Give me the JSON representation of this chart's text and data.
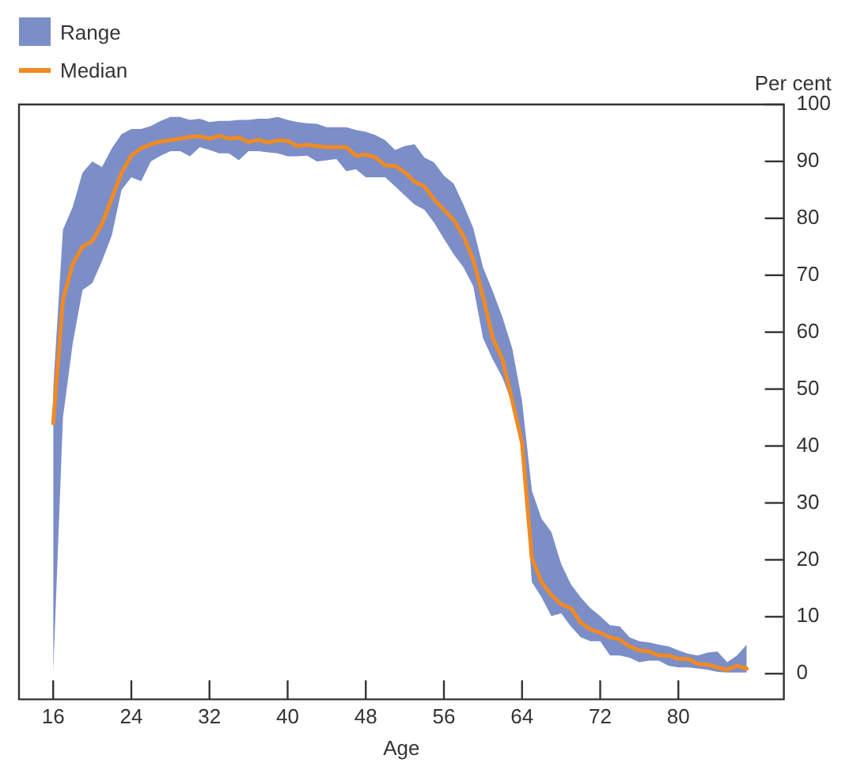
{
  "chart_data": {
    "type": "line",
    "xlabel": "Age",
    "ylabel": "Per cent",
    "legend": "top left",
    "grid": false,
    "marker": "none",
    "line_style": "solid",
    "annotations": [
      "Range"
    ],
    "x": [
      16,
      17,
      18,
      19,
      20,
      21,
      22,
      23,
      24,
      25,
      26,
      27,
      28,
      29,
      30,
      31,
      32,
      33,
      34,
      35,
      36,
      37,
      38,
      39,
      40,
      41,
      42,
      43,
      44,
      45,
      46,
      47,
      48,
      49,
      50,
      51,
      52,
      53,
      54,
      55,
      56,
      57,
      58,
      59,
      60,
      61,
      62,
      63,
      64,
      65,
      66,
      67,
      68,
      69,
      70,
      71,
      72,
      73,
      74,
      75,
      76,
      77,
      78,
      79,
      80,
      81,
      82,
      83,
      84,
      85,
      86,
      87
    ],
    "xlim": [
      12.5,
      90.8
    ],
    "xticks": [
      16,
      24,
      32,
      40,
      48,
      56,
      64,
      72,
      80
    ],
    "ylim": [
      -4.5,
      100
    ],
    "yticks": [
      0,
      10,
      20,
      30,
      40,
      50,
      60,
      70,
      80,
      90,
      100
    ],
    "series": [
      {
        "name": "Median",
        "type": "line",
        "color": "#f08a24",
        "values": [
          44,
          65.6,
          72,
          75,
          76,
          79,
          83.5,
          88,
          91,
          92.3,
          93,
          93.5,
          93.7,
          94,
          94.3,
          94.4,
          94,
          94.5,
          94,
          94.2,
          93.4,
          93.8,
          93.3,
          93.7,
          93.6,
          92.7,
          92.9,
          92.7,
          92.5,
          92.5,
          92.5,
          91,
          91.2,
          90.7,
          89.3,
          89.2,
          88.1,
          86.4,
          85.6,
          83.3,
          81.5,
          79.7,
          76.9,
          72.7,
          66.3,
          59,
          55.2,
          47.9,
          40.5,
          20.3,
          16.1,
          13.8,
          12.2,
          11.5,
          9,
          7.8,
          7.2,
          6.4,
          6,
          4.8,
          4.1,
          3.9,
          3.2,
          3.2,
          2.6,
          2.6,
          1.7,
          1.6,
          1.1,
          0.7,
          1.4,
          0.9
        ],
        "lower": [
          0,
          45,
          58,
          67.4,
          68.6,
          72.5,
          77,
          85,
          87.2,
          86.5,
          90,
          91,
          91.8,
          91.8,
          90.9,
          92.5,
          92,
          91.4,
          91.4,
          90.2,
          91.8,
          91.8,
          91.6,
          91.4,
          90.9,
          90.9,
          91,
          90,
          90.2,
          90.4,
          88.3,
          88.6,
          87.2,
          87.2,
          87.2,
          85.6,
          84,
          82.4,
          81.5,
          79.2,
          76.4,
          73.7,
          71.4,
          68.1,
          59,
          55.2,
          52,
          47.4,
          40,
          16.1,
          13.4,
          10.1,
          10.6,
          8.3,
          6.4,
          5.7,
          5.7,
          3.2,
          3.2,
          2.8,
          2,
          2.3,
          2.3,
          1.4,
          1.1,
          1.1,
          0.9,
          0.7,
          0.3,
          0.2,
          0.2,
          0.2
        ],
        "upper": [
          50,
          78,
          82,
          88,
          90,
          89,
          92.3,
          94.8,
          95.7,
          95.7,
          96.2,
          97.1,
          97.8,
          97.8,
          97.3,
          97.5,
          96.9,
          97.1,
          97.1,
          97.3,
          97.3,
          97.5,
          97.5,
          97.8,
          97.3,
          96.9,
          96.7,
          96.6,
          96,
          96,
          96,
          95.5,
          95.2,
          94.6,
          93.7,
          92,
          92.7,
          93,
          90.7,
          89.8,
          87.5,
          86.1,
          82.4,
          78.3,
          71.4,
          67.2,
          62.6,
          57.1,
          47.9,
          32.2,
          27.2,
          24.9,
          19.3,
          15.7,
          13.4,
          11.5,
          10.1,
          8.5,
          8.3,
          6.4,
          5.7,
          5.5,
          5.1,
          4.8,
          4.1,
          3.5,
          3.2,
          3.7,
          3.9,
          2,
          3.2,
          5.1
        ]
      }
    ]
  }
}
